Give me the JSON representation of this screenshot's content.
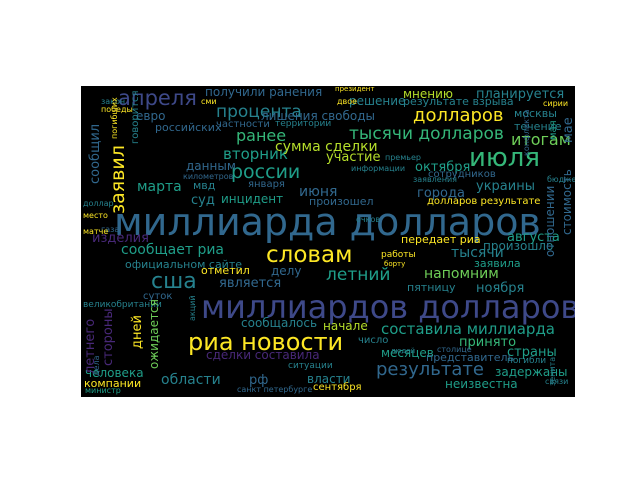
{
  "palette": {
    "yellow": "#fde725",
    "lime": "#b5de2b",
    "green": "#6ece58",
    "mint": "#35b779",
    "teal": "#1f9e89",
    "cyan": "#26828e",
    "blue": "#31688e",
    "indigo": "#3e4989",
    "purple": "#482878",
    "dark": "#440154"
  },
  "words": [
    "миллиарда долларов",
    "миллиардов долларов",
    "риа новости",
    "словам",
    "июля",
    "сша",
    "заявил",
    "апреля",
    "тысячи долларов",
    "долларов",
    "результате",
    "летний",
    "россии",
    "процента",
    "сумма сделки",
    "ранее",
    "составила миллиарда",
    "итогам",
    "вторник",
    "июня",
    "сообщил",
    "дней",
    "мнению",
    "планируется",
    "получили ранения",
    "сообщает риа",
    "напомним",
    "стороны",
    "августа",
    "сделки составила",
    "области",
    "является",
    "марта",
    "украины",
    "принято",
    "октября",
    "лишения свободы",
    "участие",
    "города",
    "тысячи",
    "ноября",
    "страны",
    "месяцев",
    "сообщалось",
    "ожидается",
    "летнего",
    "мая",
    "изделия",
    "неизвестна",
    "решение",
    "результате взрыва",
    "москвы",
    "евро",
    "произошло",
    "представитель",
    "человека",
    "власти",
    "данным",
    "задержаны",
    "компании",
    "начале",
    "рф",
    "суд",
    "инцидент",
    "произошел",
    "делу",
    "официальном сайте",
    "отметил",
    "заявила",
    "пятницу",
    "передает риа",
    "российских",
    "суток",
    "сотрудников",
    "мвд",
    "января",
    "дела",
    "долларов результате",
    "частности",
    "территории",
    "конфликта",
    "течение",
    "отношении",
    "стоимость",
    "мае",
    "говорится",
    "победы",
    "сми",
    "великобритании",
    "закон",
    "зенита",
    "сентября",
    "погибли",
    "сирии",
    "связи",
    "газа",
    "столице",
    "информации",
    "президент",
    "министр",
    "санкт петербурге",
    "километров",
    "погибших",
    "людей",
    "работы",
    "число",
    "акций",
    "двое",
    "заявления",
    "премьер",
    "борту",
    "ситуации",
    "бюджета",
    "очков",
    "доллар",
    "место",
    "матче",
    "украине",
    "бишкека"
  ]
}
